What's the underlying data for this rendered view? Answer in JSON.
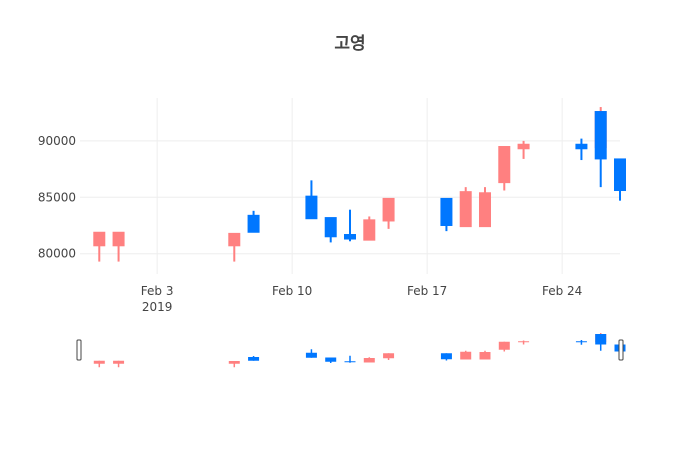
{
  "chart_data": {
    "type": "candlestick",
    "title": "고영",
    "xlabel": "",
    "ylabel": "",
    "x_tick_labels": [
      {
        "date": "2019-02-03",
        "label": "Feb 3",
        "sublabel": "2019"
      },
      {
        "date": "2019-02-10",
        "label": "Feb 10",
        "sublabel": ""
      },
      {
        "date": "2019-02-17",
        "label": "Feb 17",
        "sublabel": ""
      },
      {
        "date": "2019-02-24",
        "label": "Feb 24",
        "sublabel": ""
      }
    ],
    "y_ticks": [
      80000,
      85000,
      90000
    ],
    "y_tick_labels": [
      "80000",
      "85000",
      "90000"
    ],
    "xlim": [
      "2019-01-30",
      "2019-02-27"
    ],
    "ylim": [
      78200,
      93800
    ],
    "grid": true,
    "rangeslider": true,
    "increasing_color": "#0077ff",
    "decreasing_color": "#ff8080",
    "candles": [
      {
        "date": "2019-01-31",
        "open": 81900,
        "high": 81900,
        "low": 79300,
        "close": 80700
      },
      {
        "date": "2019-02-01",
        "open": 81900,
        "high": 81900,
        "low": 79300,
        "close": 80700
      },
      {
        "date": "2019-02-07",
        "open": 81800,
        "high": 81800,
        "low": 79300,
        "close": 80700
      },
      {
        "date": "2019-02-08",
        "open": 81900,
        "high": 83800,
        "low": 81900,
        "close": 83400
      },
      {
        "date": "2019-02-11",
        "open": 83100,
        "high": 86500,
        "low": 83100,
        "close": 85100
      },
      {
        "date": "2019-02-12",
        "open": 81500,
        "high": 83200,
        "low": 81000,
        "close": 83200
      },
      {
        "date": "2019-02-13",
        "open": 81300,
        "high": 83900,
        "low": 81100,
        "close": 81700
      },
      {
        "date": "2019-02-14",
        "open": 83000,
        "high": 83300,
        "low": 81200,
        "close": 81200
      },
      {
        "date": "2019-02-15",
        "open": 84900,
        "high": 84900,
        "low": 82200,
        "close": 82900
      },
      {
        "date": "2019-02-18",
        "open": 82500,
        "high": 84900,
        "low": 82000,
        "close": 84900
      },
      {
        "date": "2019-02-19",
        "open": 85500,
        "high": 85900,
        "low": 82400,
        "close": 82400
      },
      {
        "date": "2019-02-20",
        "open": 85400,
        "high": 85900,
        "low": 82400,
        "close": 82400
      },
      {
        "date": "2019-02-21",
        "open": 89500,
        "high": 89500,
        "low": 85600,
        "close": 86300
      },
      {
        "date": "2019-02-22",
        "open": 89700,
        "high": 90000,
        "low": 88400,
        "close": 89300
      },
      {
        "date": "2019-02-25",
        "open": 89300,
        "high": 90200,
        "low": 88300,
        "close": 89700
      },
      {
        "date": "2019-02-26",
        "open": 92600,
        "high": 93000,
        "low": 88400,
        "close": 89400
      },
      {
        "date": "2019-02-26",
        "open": 88400,
        "high": 92600,
        "low": 85900,
        "close": 92600
      },
      {
        "date": "2019-02-27",
        "open": 85600,
        "high": 88400,
        "low": 84700,
        "close": 88400
      }
    ]
  }
}
